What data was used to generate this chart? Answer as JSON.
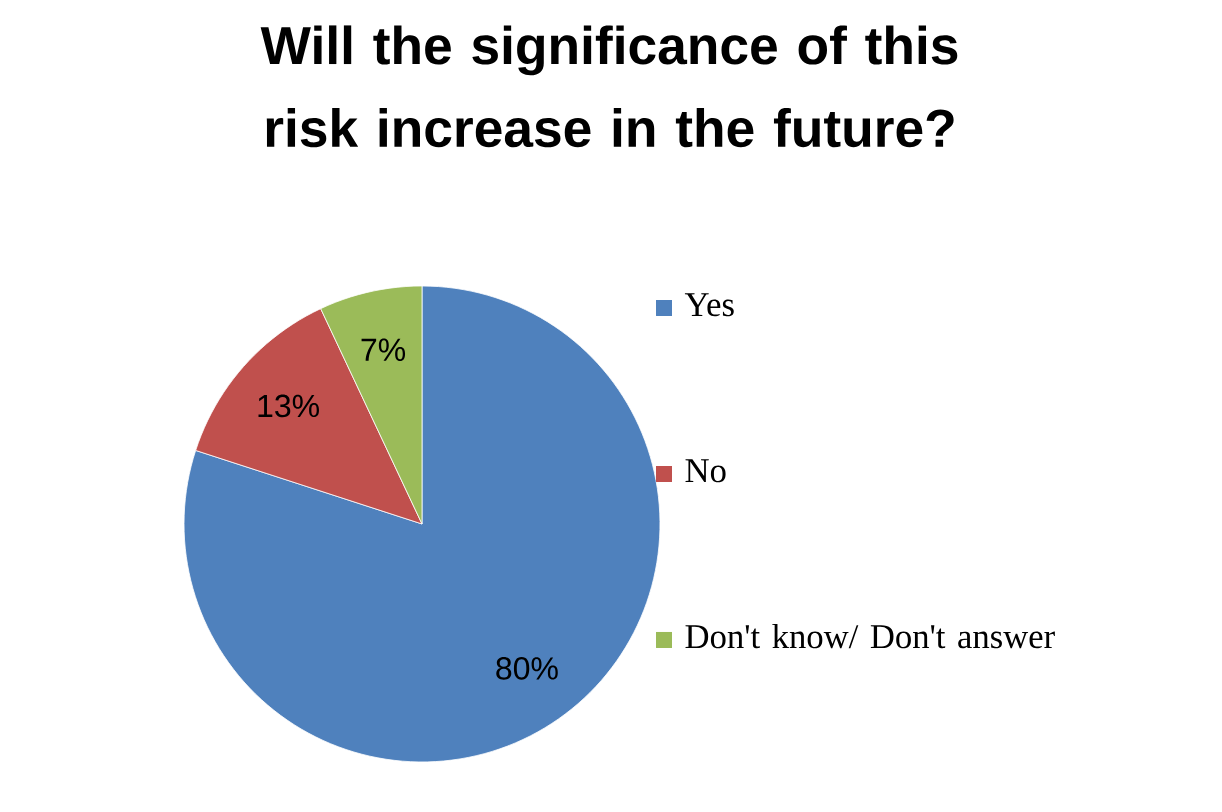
{
  "chart_data": {
    "type": "pie",
    "title": "Will the significance of this risk increase in the future?",
    "categories": [
      "Yes",
      "No",
      "Don't know/ Don't answer"
    ],
    "values": [
      80,
      13,
      7
    ],
    "value_labels": [
      "80%",
      "13%",
      "7%"
    ],
    "colors": [
      "#4f81bd",
      "#c0504d",
      "#9bbb59"
    ],
    "legend": "right"
  }
}
